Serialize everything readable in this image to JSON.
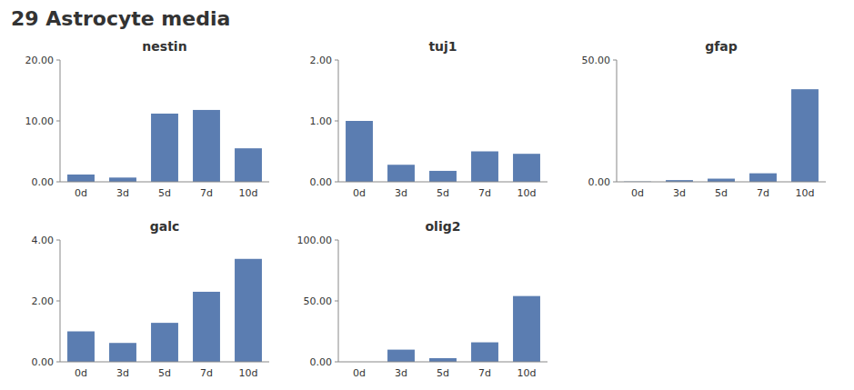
{
  "title": "29 Astrocyte media",
  "chart_data": [
    {
      "type": "bar",
      "title": "nestin",
      "categories": [
        "0d",
        "3d",
        "5d",
        "7d",
        "10d"
      ],
      "values": [
        1.2,
        0.7,
        11.2,
        11.8,
        5.5
      ],
      "color": "#5b7db1",
      "ylim": [
        0,
        20
      ],
      "yticks": [
        {
          "value": 0,
          "label": "0.00"
        },
        {
          "value": 10,
          "label": "10.00"
        },
        {
          "value": 20,
          "label": "20.00"
        }
      ],
      "grid": false
    },
    {
      "type": "bar",
      "title": "tuj1",
      "categories": [
        "0d",
        "3d",
        "5d",
        "7d",
        "10d"
      ],
      "values": [
        1.0,
        0.28,
        0.18,
        0.5,
        0.46
      ],
      "color": "#5b7db1",
      "ylim": [
        0,
        2.0
      ],
      "yticks": [
        {
          "value": 0,
          "label": "0.00"
        },
        {
          "value": 1,
          "label": "1.00"
        },
        {
          "value": 2,
          "label": "2.00"
        }
      ],
      "grid": false
    },
    {
      "type": "bar",
      "title": "gfap",
      "categories": [
        "0d",
        "3d",
        "5d",
        "7d",
        "10d"
      ],
      "values": [
        0.12,
        0.7,
        1.3,
        3.5,
        38.0
      ],
      "color": "#5b7db1",
      "ylim": [
        0,
        50
      ],
      "yticks": [
        {
          "value": 0,
          "label": "0.00"
        },
        {
          "value": 50,
          "label": "50.00"
        }
      ],
      "grid": false
    },
    {
      "type": "bar",
      "title": "galc",
      "categories": [
        "0d",
        "3d",
        "5d",
        "7d",
        "10d"
      ],
      "values": [
        1.0,
        0.62,
        1.28,
        2.3,
        3.38
      ],
      "color": "#5b7db1",
      "ylim": [
        0,
        4.0
      ],
      "yticks": [
        {
          "value": 0,
          "label": "0.00"
        },
        {
          "value": 2,
          "label": "2.00"
        },
        {
          "value": 4,
          "label": "4.00"
        }
      ],
      "grid": false
    },
    {
      "type": "bar",
      "title": "olig2",
      "categories": [
        "0d",
        "3d",
        "5d",
        "7d",
        "10d"
      ],
      "values": [
        0.0,
        10.0,
        3.0,
        16.0,
        54.0
      ],
      "color": "#5b7db1",
      "ylim": [
        0,
        100
      ],
      "yticks": [
        {
          "value": 0,
          "label": "0.00"
        },
        {
          "value": 50,
          "label": "50.00"
        },
        {
          "value": 100,
          "label": "100.00"
        }
      ],
      "grid": false
    }
  ]
}
